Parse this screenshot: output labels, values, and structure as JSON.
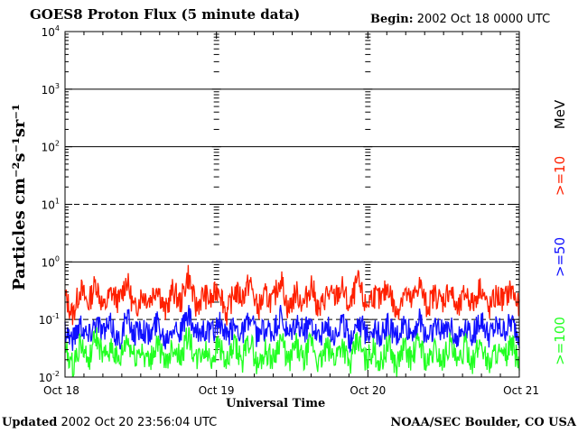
{
  "header": {
    "title": "GOES8 Proton Flux (5 minute data)",
    "begin_label": "Begin:",
    "begin_value": "2002 Oct 18 0000 UTC"
  },
  "footer": {
    "updated_label": "Updated",
    "updated_value": "2002 Oct 20 23:56:04 UTC",
    "credit": "NOAA/SEC Boulder, CO USA"
  },
  "axes": {
    "ylabel": "Particles cm⁻²s⁻¹sr⁻¹",
    "xlabel": "Universal Time",
    "unit_label": "MeV"
  },
  "colors": {
    "ge10": "#ff2000",
    "ge50": "#1010ff",
    "ge100": "#22ff22",
    "axis": "#000000"
  },
  "chart_data": {
    "type": "line",
    "title": "GOES8 Proton Flux (5 minute data)",
    "xlabel": "Universal Time",
    "ylabel": "Particles cm⁻²s⁻¹sr⁻¹",
    "y_scale": "log",
    "ylim": [
      0.01,
      10000
    ],
    "y_ticks": [
      {
        "base": "10",
        "exp": "-2"
      },
      {
        "base": "10",
        "exp": "-1"
      },
      {
        "base": "10",
        "exp": "0"
      },
      {
        "base": "10",
        "exp": "1"
      },
      {
        "base": "10",
        "exp": "2"
      },
      {
        "base": "10",
        "exp": "3"
      },
      {
        "base": "10",
        "exp": "4"
      }
    ],
    "x_ticks": [
      "Oct 18",
      "Oct 19",
      "Oct 20",
      "Oct 21"
    ],
    "x_range_days": [
      0,
      3
    ],
    "grid": true,
    "legend_position": "right",
    "series": [
      {
        "name": ">=10",
        "color": "#ff2000",
        "values": [
          0.25,
          0.12,
          0.35,
          0.18,
          0.45,
          0.15,
          0.3,
          0.2,
          0.5,
          0.14,
          0.28,
          0.22,
          0.4,
          0.13,
          0.33,
          0.19,
          0.6,
          0.16,
          0.27,
          0.21,
          0.38,
          0.12,
          0.31,
          0.24,
          0.45,
          0.15,
          0.26,
          0.2,
          0.55,
          0.14,
          0.3,
          0.18,
          0.42,
          0.13,
          0.29,
          0.23,
          0.36,
          0.15,
          0.48,
          0.17,
          0.27,
          0.21,
          0.39,
          0.12,
          0.32,
          0.19,
          0.44,
          0.16,
          0.28,
          0.2,
          0.35,
          0.13,
          0.3,
          0.18,
          0.4,
          0.14,
          0.26,
          0.22,
          0.34,
          0.15
        ]
      },
      {
        "name": ">=50",
        "color": "#1010ff",
        "values": [
          0.07,
          0.045,
          0.09,
          0.05,
          0.1,
          0.06,
          0.08,
          0.04,
          0.11,
          0.055,
          0.075,
          0.05,
          0.095,
          0.045,
          0.085,
          0.06,
          0.12,
          0.05,
          0.07,
          0.055,
          0.09,
          0.045,
          0.08,
          0.06,
          0.1,
          0.05,
          0.07,
          0.055,
          0.11,
          0.045,
          0.085,
          0.06,
          0.095,
          0.05,
          0.075,
          0.055,
          0.09,
          0.045,
          0.1,
          0.06,
          0.07,
          0.05,
          0.085,
          0.045,
          0.08,
          0.055,
          0.095,
          0.05,
          0.075,
          0.06,
          0.09,
          0.045,
          0.08,
          0.055,
          0.1,
          0.05,
          0.07,
          0.06,
          0.085,
          0.05
        ]
      },
      {
        "name": ">=100",
        "color": "#22ff22",
        "values": [
          0.03,
          0.015,
          0.04,
          0.018,
          0.05,
          0.02,
          0.035,
          0.016,
          0.045,
          0.022,
          0.03,
          0.017,
          0.042,
          0.015,
          0.038,
          0.02,
          0.055,
          0.018,
          0.03,
          0.021,
          0.04,
          0.016,
          0.035,
          0.019,
          0.048,
          0.015,
          0.03,
          0.02,
          0.05,
          0.017,
          0.036,
          0.018,
          0.044,
          0.016,
          0.032,
          0.021,
          0.04,
          0.015,
          0.046,
          0.019,
          0.03,
          0.017,
          0.038,
          0.015,
          0.034,
          0.02,
          0.045,
          0.016,
          0.031,
          0.019,
          0.04,
          0.015,
          0.035,
          0.018,
          0.043,
          0.016,
          0.03,
          0.02,
          0.037,
          0.017
        ]
      }
    ]
  }
}
